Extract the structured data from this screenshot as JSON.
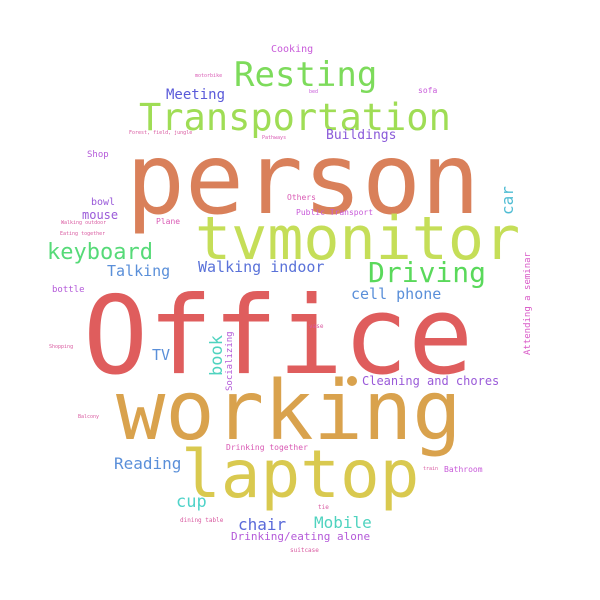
{
  "words": [
    {
      "text": "person",
      "color": "#d9805a"
    },
    {
      "text": "Office",
      "color": "#df5d5d"
    },
    {
      "text": "working",
      "color": "#d9a24d"
    },
    {
      "text": "tvmonitor",
      "color": "#c5de58"
    },
    {
      "text": "laptop",
      "color": "#d9c94f"
    },
    {
      "text": "Transportation",
      "color": "#9fdd55"
    },
    {
      "text": "Resting",
      "color": "#7ddb5b"
    },
    {
      "text": "Driving",
      "color": "#5ad95b"
    },
    {
      "text": "keyboard",
      "color": "#56da78"
    },
    {
      "text": "Walking indoor",
      "color": "#5a72d9"
    },
    {
      "text": "Talking",
      "color": "#5a8fd9"
    },
    {
      "text": "cell phone",
      "color": "#5a8fd9"
    },
    {
      "text": "Meeting",
      "color": "#5a5ad9"
    },
    {
      "text": "Buildings",
      "color": "#8a5ad9"
    },
    {
      "text": "car",
      "color": "#4fbcd3"
    },
    {
      "text": "book",
      "color": "#4fd3bf"
    },
    {
      "text": "TV",
      "color": "#5a8fd9"
    },
    {
      "text": "Cleaning and chores",
      "color": "#9a5ad9"
    },
    {
      "text": "Reading",
      "color": "#5a8fd9"
    },
    {
      "text": "cup",
      "color": "#4fd3c9"
    },
    {
      "text": "chair",
      "color": "#5a6ad9"
    },
    {
      "text": "Mobile",
      "color": "#4fd3bf"
    },
    {
      "text": "Drinking/eating alone",
      "color": "#b45ad9"
    },
    {
      "text": "mouse",
      "color": "#9a5ad9"
    },
    {
      "text": "bowl",
      "color": "#9a5ad9"
    },
    {
      "text": "bottle",
      "color": "#b45ad9"
    },
    {
      "text": "Shop",
      "color": "#b45ad9"
    },
    {
      "text": "Cooking",
      "color": "#c85ad9"
    },
    {
      "text": "sofa",
      "color": "#c85ad9"
    },
    {
      "text": "bed",
      "color": "#c85ad9"
    },
    {
      "text": "motorbike",
      "color": "#d95ab4"
    },
    {
      "text": "Pathways",
      "color": "#d95ab4"
    },
    {
      "text": "Forest, field, jungle",
      "color": "#d95aa0"
    },
    {
      "text": "Others",
      "color": "#d95ab4"
    },
    {
      "text": "Public Transport",
      "color": "#c85ad9"
    },
    {
      "text": "Plane",
      "color": "#d95ab4"
    },
    {
      "text": "Walking outdoor",
      "color": "#d95aa0"
    },
    {
      "text": "Eating together",
      "color": "#d95aa0"
    },
    {
      "text": "Socializing",
      "color": "#b45ad9"
    },
    {
      "text": "Attending a seminar",
      "color": "#d95ac8"
    },
    {
      "text": "vase",
      "color": "#d95aa0"
    },
    {
      "text": "Shopping",
      "color": "#d95aa0"
    },
    {
      "text": "Balcony",
      "color": "#d95aa0"
    },
    {
      "text": "Drinking together",
      "color": "#d95ab4"
    },
    {
      "text": "Bathroom",
      "color": "#c85ad9"
    },
    {
      "text": "train",
      "color": "#d95aa0"
    },
    {
      "text": "tie",
      "color": "#d95aa0"
    },
    {
      "text": "dining table",
      "color": "#d95aa0"
    },
    {
      "text": "suitcase",
      "color": "#d95aa0"
    }
  ],
  "dots": [
    {
      "color": "#d9a24d"
    }
  ]
}
